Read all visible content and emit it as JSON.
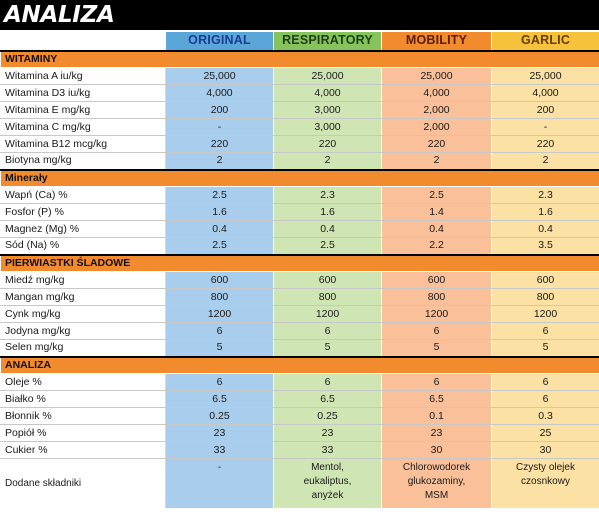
{
  "title": "ANALIZA",
  "columns": [
    "ORIGINAL",
    "RESPIRATORY",
    "MOBILITY",
    "GARLIC"
  ],
  "sections": [
    {
      "name": "WITAMINY",
      "rows": [
        {
          "label": "Witamina A iu/kg",
          "values": [
            "25,000",
            "25,000",
            "25,000",
            "25,000"
          ]
        },
        {
          "label": "Witamina D3 iu/kg",
          "values": [
            "4,000",
            "4,000",
            "4,000",
            "4,000"
          ]
        },
        {
          "label": "Witamina E mg/kg",
          "values": [
            "200",
            "3,000",
            "2,000",
            "200"
          ]
        },
        {
          "label": "Witamina C mg/kg",
          "values": [
            "-",
            "3,000",
            "2,000",
            "-"
          ]
        },
        {
          "label": "Witamina B12 mcg/kg",
          "values": [
            "220",
            "220",
            "220",
            "220"
          ]
        },
        {
          "label": "Biotyna mg/kg",
          "values": [
            "2",
            "2",
            "2",
            "2"
          ]
        }
      ]
    },
    {
      "name": "Minerały",
      "rows": [
        {
          "label": "Wapń (Ca) %",
          "values": [
            "2.5",
            "2.3",
            "2.5",
            "2.3"
          ]
        },
        {
          "label": "Fosfor (P) %",
          "values": [
            "1.6",
            "1.6",
            "1.4",
            "1.6"
          ]
        },
        {
          "label": "Magnez (Mg) %",
          "values": [
            "0.4",
            "0.4",
            "0.4",
            "0.4"
          ]
        },
        {
          "label": "Sód (Na) %",
          "values": [
            "2.5",
            "2.5",
            "2.2",
            "3.5"
          ]
        }
      ]
    },
    {
      "name": "PIERWIASTKI ŚLADOWE",
      "rows": [
        {
          "label": "Miedź mg/kg",
          "values": [
            "600",
            "600",
            "600",
            "600"
          ]
        },
        {
          "label": "Mangan mg/kg",
          "values": [
            "800",
            "800",
            "800",
            "800"
          ]
        },
        {
          "label": "Cynk mg/kg",
          "values": [
            "1200",
            "1200",
            "1200",
            "1200"
          ]
        },
        {
          "label": "Jodyna mg/kg",
          "values": [
            "6",
            "6",
            "6",
            "6"
          ]
        },
        {
          "label": "Selen mg/kg",
          "values": [
            "5",
            "5",
            "5",
            "5"
          ]
        }
      ]
    },
    {
      "name": "ANALIZA",
      "rows": [
        {
          "label": "Oleje %",
          "values": [
            "6",
            "6",
            "6",
            "6"
          ]
        },
        {
          "label": "Białko %",
          "values": [
            "6.5",
            "6.5",
            "6.5",
            "6"
          ]
        },
        {
          "label": "Błonnik %",
          "values": [
            "0.25",
            "0.25",
            "0.1",
            "0.3"
          ]
        },
        {
          "label": "Popiół %",
          "values": [
            "23",
            "23",
            "23",
            "25"
          ]
        },
        {
          "label": "Cukier %",
          "values": [
            "33",
            "33",
            "30",
            "30"
          ]
        }
      ]
    }
  ],
  "ingredients": {
    "label": "Dodane składniki",
    "values": [
      [
        "-"
      ],
      [
        "Mentol,",
        "eukaliptus,",
        "anyżek"
      ],
      [
        "Chlorowodorek",
        "glukozaminy,",
        "MSM"
      ],
      [
        "Czysty olejek",
        "czosnkowy"
      ]
    ]
  }
}
